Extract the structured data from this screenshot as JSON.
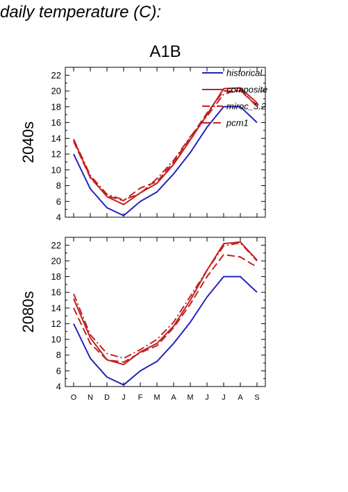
{
  "page": {
    "title": "daily temperature (C):"
  },
  "chart_data": [
    {
      "type": "line",
      "title": "A1B",
      "ylabel": "2040s",
      "xlabel": "",
      "categories": [
        "O",
        "N",
        "D",
        "J",
        "F",
        "M",
        "A",
        "M",
        "J",
        "J",
        "A",
        "S"
      ],
      "ylim": [
        4,
        23
      ],
      "yticks": [
        4,
        6,
        8,
        10,
        12,
        14,
        16,
        18,
        20,
        22
      ],
      "grid": false,
      "legend_position": "top-right",
      "series": [
        {
          "name": "historical",
          "color": "#2222bb",
          "dash": "solid",
          "values": [
            12.0,
            7.6,
            5.2,
            4.2,
            6.0,
            7.2,
            9.5,
            12.2,
            15.4,
            18.0,
            18.0,
            16.0
          ]
        },
        {
          "name": "composite",
          "color": "#c02020",
          "dash": "solid",
          "values": [
            13.8,
            9.1,
            6.6,
            5.6,
            7.1,
            8.3,
            10.7,
            13.8,
            17.0,
            20.3,
            20.4,
            18.5
          ]
        },
        {
          "name": "miroc_3.2",
          "color": "#c02020",
          "dash": "dashdot",
          "values": [
            13.9,
            9.3,
            6.9,
            6.2,
            7.0,
            8.9,
            11.2,
            14.2,
            16.8,
            19.6,
            20.2,
            18.0
          ]
        },
        {
          "name": "pcm1",
          "color": "#c02020",
          "dash": "dash",
          "values": [
            13.6,
            9.0,
            6.7,
            6.1,
            7.7,
            8.5,
            11.0,
            14.1,
            17.2,
            20.0,
            20.0,
            18.2
          ]
        }
      ]
    },
    {
      "type": "line",
      "title": "",
      "ylabel": "2080s",
      "xlabel": "",
      "categories": [
        "O",
        "N",
        "D",
        "J",
        "F",
        "M",
        "A",
        "M",
        "J",
        "J",
        "A",
        "S"
      ],
      "ylim": [
        4,
        23
      ],
      "yticks": [
        4,
        6,
        8,
        10,
        12,
        14,
        16,
        18,
        20,
        22
      ],
      "grid": false,
      "series": [
        {
          "name": "historical",
          "color": "#2222bb",
          "dash": "solid",
          "values": [
            12.0,
            7.6,
            5.2,
            4.2,
            6.0,
            7.2,
            9.5,
            12.2,
            15.4,
            18.0,
            18.0,
            16.0
          ]
        },
        {
          "name": "composite",
          "color": "#c02020",
          "dash": "solid",
          "values": [
            15.2,
            10.2,
            7.4,
            6.8,
            8.4,
            9.5,
            11.7,
            15.0,
            18.8,
            22.2,
            22.4,
            20.1
          ]
        },
        {
          "name": "miroc_3.2",
          "color": "#c02020",
          "dash": "dashdot",
          "values": [
            15.8,
            10.6,
            8.2,
            7.6,
            8.7,
            10.0,
            12.2,
            15.5,
            18.8,
            21.9,
            22.3,
            20.0
          ]
        },
        {
          "name": "pcm1",
          "color": "#c02020",
          "dash": "dash",
          "values": [
            14.0,
            9.5,
            7.4,
            7.1,
            8.3,
            9.2,
            11.5,
            14.5,
            18.0,
            20.8,
            20.5,
            19.2
          ]
        }
      ]
    }
  ]
}
